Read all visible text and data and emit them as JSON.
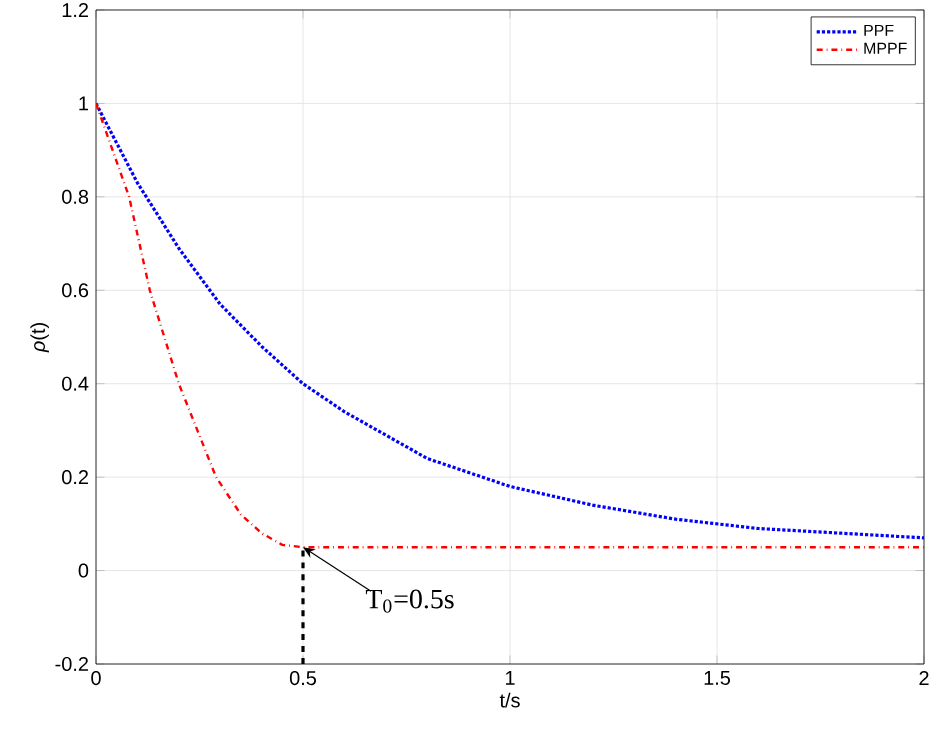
{
  "chart_data": {
    "type": "line",
    "xlabel": "t/s",
    "ylabel": "*ρ*(t)",
    "xlim": [
      0,
      2
    ],
    "ylim": [
      -0.2,
      1.2
    ],
    "xticks": [
      0,
      0.5,
      1,
      1.5,
      2
    ],
    "yticks": [
      -0.2,
      0,
      0.2,
      0.4,
      0.6,
      0.8,
      1,
      1.2
    ],
    "grid": true,
    "legend": "top right",
    "series": [
      {
        "name": "PPF",
        "color": "#0000ff",
        "line_style": "dotted",
        "x": [
          0,
          0.1,
          0.2,
          0.3,
          0.4,
          0.5,
          0.6,
          0.7,
          0.8,
          0.9,
          1.0,
          1.2,
          1.4,
          1.6,
          1.8,
          2.0
        ],
        "values": [
          1,
          0.83,
          0.69,
          0.57,
          0.48,
          0.4,
          0.34,
          0.29,
          0.24,
          0.21,
          0.18,
          0.14,
          0.11,
          0.09,
          0.08,
          0.07
        ]
      },
      {
        "name": "MPPF",
        "color": "#ff0000",
        "line_style": "dashdot",
        "x": [
          0,
          0.08,
          0.13,
          0.2,
          0.29,
          0.35,
          0.4,
          0.45,
          0.5,
          2.0
        ],
        "values": [
          1,
          0.8,
          0.6,
          0.4,
          0.2,
          0.12,
          0.08,
          0.055,
          0.05,
          0.05
        ]
      },
      {
        "color": "#000000",
        "line_style": "dashed",
        "x": [
          0.5,
          0.5
        ],
        "values": [
          -0.2,
          0.05
        ]
      }
    ],
    "annotations": [
      {
        "text": "T$_{0}$=0.5s",
        "x": 0.5,
        "y": 0.05
      }
    ]
  }
}
